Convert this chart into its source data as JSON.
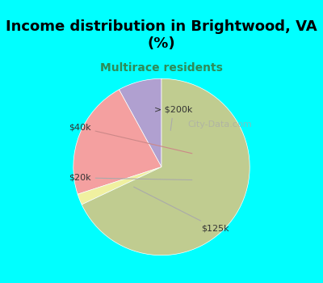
{
  "title": "Income distribution in Brightwood, VA\n(%)",
  "subtitle": "Multirace residents",
  "title_color": "#000000",
  "subtitle_color": "#2e8b57",
  "background_color": "#00ffff",
  "chart_bg_color": "#f0f8f0",
  "slices": [
    {
      "label": "> $200k",
      "value": 8,
      "color": "#b0a0d0"
    },
    {
      "label": "$40k",
      "value": 22,
      "color": "#f4a0a0"
    },
    {
      "label": "$20k",
      "value": 2,
      "color": "#f0f0a0"
    },
    {
      "label": "$125k",
      "value": 68,
      "color": "#c0cc90"
    }
  ],
  "watermark": "City-Data.com",
  "startangle": 90
}
